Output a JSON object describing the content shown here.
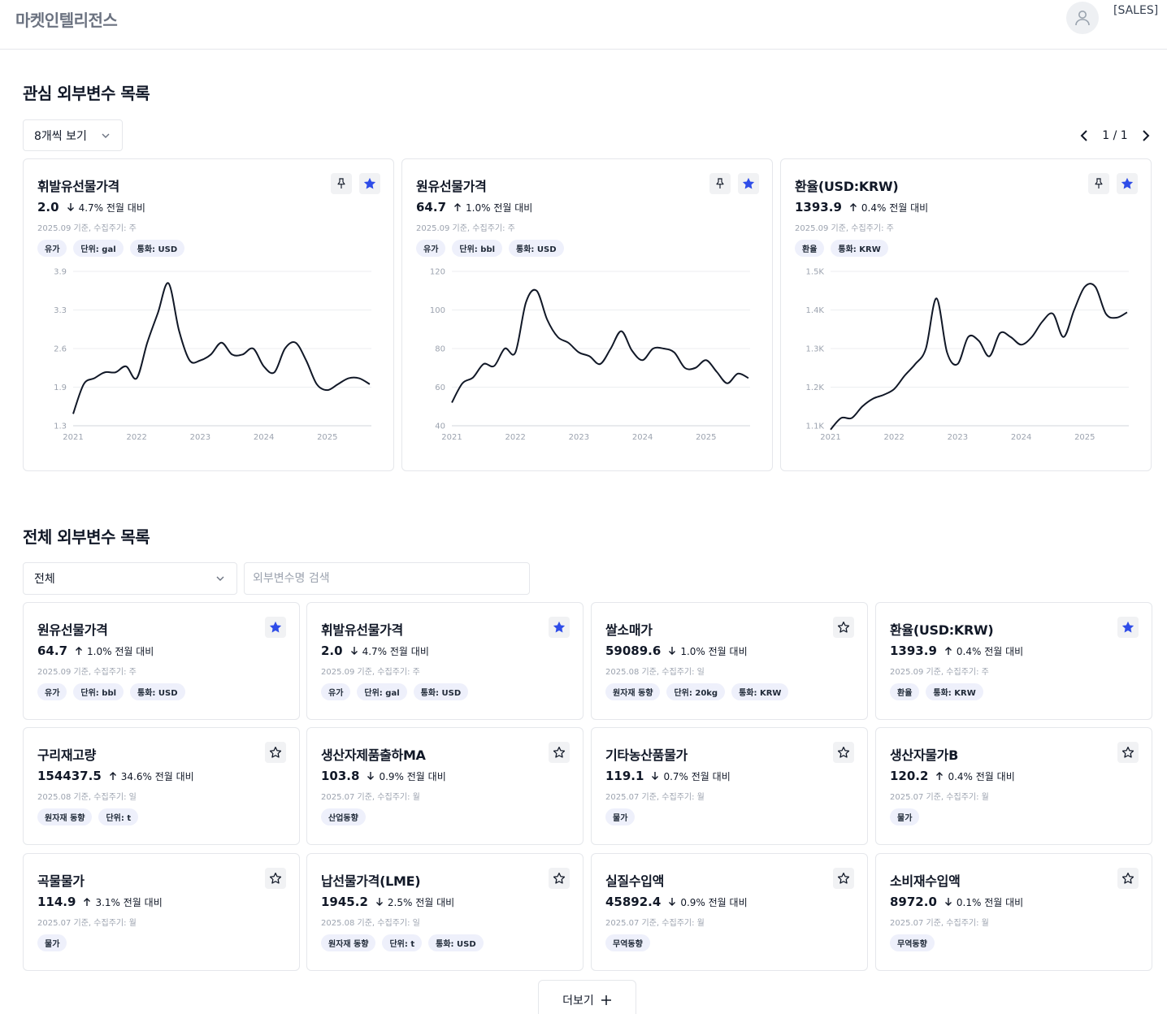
{
  "header": {
    "brand": "마켓인텔리전스",
    "role": "[SALES]"
  },
  "favorites": {
    "title": "관심 외부변수 목록",
    "page_size_label": "8개씩 보기",
    "pager": "1 / 1",
    "cards": [
      {
        "name": "휘발유선물가격",
        "value": "2.0",
        "direction": "down",
        "change": "4.7% 전월 대비",
        "meta": "2025.09 기준, 수집주기: 주",
        "tags": [
          "유가",
          "단위: gal",
          "통화: USD"
        ],
        "chart_data": {
          "type": "line",
          "x": [
            "2021-01",
            "2021-03",
            "2021-05",
            "2021-07",
            "2021-09",
            "2021-11",
            "2022-01",
            "2022-03",
            "2022-05",
            "2022-07",
            "2022-09",
            "2022-11",
            "2023-01",
            "2023-03",
            "2023-05",
            "2023-07",
            "2023-09",
            "2023-11",
            "2024-01",
            "2024-03",
            "2024-05",
            "2024-07",
            "2024-09",
            "2024-11",
            "2025-01",
            "2025-03",
            "2025-05",
            "2025-07",
            "2025-09"
          ],
          "values": [
            1.5,
            2.0,
            2.1,
            2.2,
            2.2,
            2.3,
            2.1,
            2.7,
            3.2,
            3.7,
            2.9,
            2.4,
            2.4,
            2.5,
            2.7,
            2.5,
            2.5,
            2.6,
            2.3,
            2.2,
            2.6,
            2.7,
            2.4,
            2.0,
            1.9,
            2.0,
            2.1,
            2.1,
            2.0
          ],
          "yticks": [
            "3.9",
            "3.3",
            "2.6",
            "1.9",
            "1.3"
          ],
          "ylim": [
            1.3,
            3.9
          ],
          "xticks": [
            "2021",
            "2022",
            "2023",
            "2024",
            "2025"
          ]
        }
      },
      {
        "name": "원유선물가격",
        "value": "64.7",
        "direction": "up",
        "change": "1.0% 전월 대비",
        "meta": "2025.09 기준, 수집주기: 주",
        "tags": [
          "유가",
          "단위: bbl",
          "통화: USD"
        ],
        "chart_data": {
          "type": "line",
          "x": [
            "2021-01",
            "2021-03",
            "2021-05",
            "2021-07",
            "2021-09",
            "2021-11",
            "2022-01",
            "2022-03",
            "2022-05",
            "2022-07",
            "2022-09",
            "2022-11",
            "2023-01",
            "2023-03",
            "2023-05",
            "2023-07",
            "2023-09",
            "2023-11",
            "2024-01",
            "2024-03",
            "2024-05",
            "2024-07",
            "2024-09",
            "2024-11",
            "2025-01",
            "2025-03",
            "2025-05",
            "2025-07",
            "2025-09"
          ],
          "values": [
            52,
            62,
            65,
            72,
            71,
            80,
            78,
            104,
            110,
            95,
            86,
            83,
            78,
            76,
            72,
            80,
            89,
            79,
            74,
            80,
            80,
            78,
            70,
            70,
            74,
            68,
            62,
            67,
            64.7
          ],
          "yticks": [
            "120",
            "100",
            "80",
            "60",
            "40"
          ],
          "ylim": [
            40,
            120
          ],
          "xticks": [
            "2021",
            "2022",
            "2023",
            "2024",
            "2025"
          ]
        }
      },
      {
        "name": "환율(USD:KRW)",
        "value": "1393.9",
        "direction": "up",
        "change": "0.4% 전월 대비",
        "meta": "2025.09 기준, 수집주기: 주",
        "tags": [
          "환율",
          "통화: KRW"
        ],
        "chart_data": {
          "type": "line",
          "x": [
            "2021-01",
            "2021-03",
            "2021-05",
            "2021-07",
            "2021-09",
            "2021-11",
            "2022-01",
            "2022-03",
            "2022-05",
            "2022-07",
            "2022-09",
            "2022-11",
            "2023-01",
            "2023-03",
            "2023-05",
            "2023-07",
            "2023-09",
            "2023-11",
            "2024-01",
            "2024-03",
            "2024-05",
            "2024-07",
            "2024-09",
            "2024-11",
            "2025-01",
            "2025-03",
            "2025-05",
            "2025-07",
            "2025-09"
          ],
          "values": [
            1090,
            1120,
            1120,
            1150,
            1170,
            1180,
            1195,
            1230,
            1260,
            1300,
            1430,
            1290,
            1260,
            1330,
            1320,
            1280,
            1340,
            1330,
            1310,
            1330,
            1370,
            1390,
            1330,
            1400,
            1460,
            1460,
            1390,
            1380,
            1394
          ],
          "yticks": [
            "1.5K",
            "1.4K",
            "1.3K",
            "1.2K",
            "1.1K"
          ],
          "ylim": [
            1100,
            1500
          ],
          "xticks": [
            "2021",
            "2022",
            "2023",
            "2024",
            "2025"
          ]
        }
      }
    ]
  },
  "all": {
    "title": "전체 외부변수 목록",
    "category_select": "전체",
    "search_placeholder": "외부변수명 검색",
    "more_label": "더보기",
    "cards": [
      {
        "name": "원유선물가격",
        "value": "64.7",
        "direction": "up",
        "change": "1.0% 전월 대비",
        "meta": "2025.09 기준, 수집주기: 주",
        "tags": [
          "유가",
          "단위: bbl",
          "통화: USD"
        ],
        "starred": true
      },
      {
        "name": "휘발유선물가격",
        "value": "2.0",
        "direction": "down",
        "change": "4.7% 전월 대비",
        "meta": "2025.09 기준, 수집주기: 주",
        "tags": [
          "유가",
          "단위: gal",
          "통화: USD"
        ],
        "starred": true
      },
      {
        "name": "쌀소매가",
        "value": "59089.6",
        "direction": "down",
        "change": "1.0% 전월 대비",
        "meta": "2025.08 기준, 수집주기: 일",
        "tags": [
          "원자재 동향",
          "단위: 20kg",
          "통화: KRW"
        ],
        "starred": false
      },
      {
        "name": "환율(USD:KRW)",
        "value": "1393.9",
        "direction": "up",
        "change": "0.4% 전월 대비",
        "meta": "2025.09 기준, 수집주기: 주",
        "tags": [
          "환율",
          "통화: KRW"
        ],
        "starred": true
      },
      {
        "name": "구리재고량",
        "value": "154437.5",
        "direction": "up",
        "change": "34.6% 전월 대비",
        "meta": "2025.08 기준, 수집주기: 일",
        "tags": [
          "원자재 동향",
          "단위: t"
        ],
        "starred": false
      },
      {
        "name": "생산자제품출하MA",
        "value": "103.8",
        "direction": "down",
        "change": "0.9% 전월 대비",
        "meta": "2025.07 기준, 수집주기: 월",
        "tags": [
          "산업동향"
        ],
        "starred": false
      },
      {
        "name": "기타농산품물가",
        "value": "119.1",
        "direction": "down",
        "change": "0.7% 전월 대비",
        "meta": "2025.07 기준, 수집주기: 월",
        "tags": [
          "물가"
        ],
        "starred": false
      },
      {
        "name": "생산자물가B",
        "value": "120.2",
        "direction": "up",
        "change": "0.4% 전월 대비",
        "meta": "2025.07 기준, 수집주기: 월",
        "tags": [
          "물가"
        ],
        "starred": false
      },
      {
        "name": "곡물물가",
        "value": "114.9",
        "direction": "up",
        "change": "3.1% 전월 대비",
        "meta": "2025.07 기준, 수집주기: 월",
        "tags": [
          "물가"
        ],
        "starred": false
      },
      {
        "name": "납선물가격(LME)",
        "value": "1945.2",
        "direction": "down",
        "change": "2.5% 전월 대비",
        "meta": "2025.08 기준, 수집주기: 일",
        "tags": [
          "원자재 동향",
          "단위: t",
          "통화: USD"
        ],
        "starred": false
      },
      {
        "name": "실질수입액",
        "value": "45892.4",
        "direction": "down",
        "change": "0.9% 전월 대비",
        "meta": "2025.07 기준, 수집주기: 월",
        "tags": [
          "무역동향"
        ],
        "starred": false
      },
      {
        "name": "소비재수입액",
        "value": "8972.0",
        "direction": "down",
        "change": "0.1% 전월 대비",
        "meta": "2025.07 기준, 수집주기: 월",
        "tags": [
          "무역동향"
        ],
        "starred": false
      }
    ]
  },
  "colors": {
    "accent": "#2f4de8",
    "text": "#111827",
    "muted": "#9ca3af",
    "tag_bg": "#eef0fb",
    "border": "#e5e7eb"
  }
}
